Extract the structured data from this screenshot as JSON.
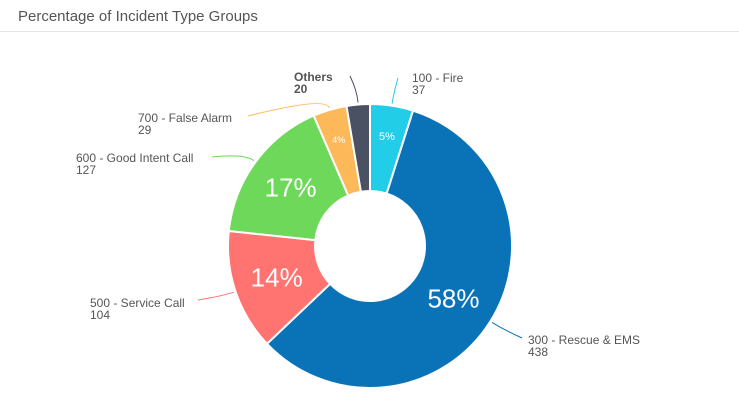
{
  "title": "Percentage of Incident Type Groups",
  "chart_data": {
    "type": "pie",
    "variant": "donut",
    "title": "Percentage of Incident Type Groups",
    "start_angle_deg": 0,
    "slices": [
      {
        "label": "100 - Fire",
        "value": 37,
        "pct_label": "5%",
        "color": "#22cde8"
      },
      {
        "label": "300 - Rescue & EMS",
        "value": 438,
        "pct_label": "58%",
        "color": "#0a73b8"
      },
      {
        "label": "500 - Service Call",
        "value": 104,
        "pct_label": "14%",
        "color": "#ff7371"
      },
      {
        "label": "600 - Good Intent Call",
        "value": 127,
        "pct_label": "17%",
        "color": "#6ed85a"
      },
      {
        "label": "700 - False Alarm",
        "value": 29,
        "pct_label": "4%",
        "color": "#fdb859"
      },
      {
        "label": "Others",
        "value": 20,
        "pct_label": "",
        "color": "#4a5162",
        "bold": true
      }
    ]
  }
}
